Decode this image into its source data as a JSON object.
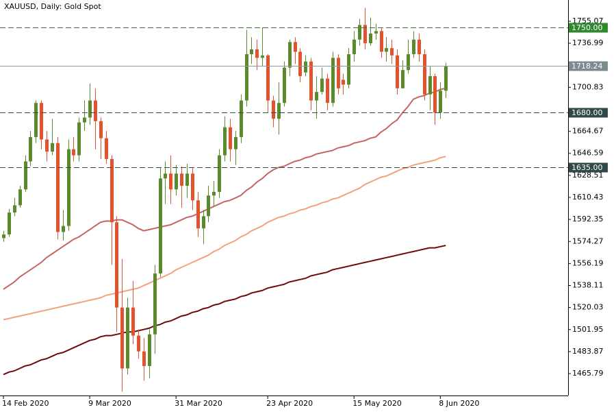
{
  "chart_data": {
    "type": "candlestick",
    "title": "XAUUSD, Daily:  Gold Spot",
    "categories": [
      "14 Feb 2020",
      null,
      null,
      null,
      null,
      null,
      null,
      null,
      null,
      null,
      null,
      null,
      null,
      null,
      null,
      null,
      "9 Mar 2020",
      null,
      null,
      null,
      null,
      null,
      null,
      null,
      null,
      null,
      null,
      null,
      null,
      null,
      null,
      null,
      "31 Mar 2020",
      null,
      null,
      null,
      null,
      null,
      null,
      null,
      null,
      null,
      null,
      null,
      null,
      null,
      null,
      null,
      null,
      "23 Apr 2020",
      null,
      null,
      null,
      null,
      null,
      null,
      null,
      null,
      null,
      null,
      null,
      null,
      null,
      null,
      null,
      "15 May 2020",
      null,
      null,
      null,
      null,
      null,
      null,
      null,
      null,
      null,
      null,
      null,
      null,
      null,
      null,
      null,
      "8 Jun 2020",
      null
    ],
    "open": [
      1577,
      1580,
      1598,
      1604,
      1617,
      1640,
      1660,
      1688,
      1658,
      1648,
      1655,
      1582,
      1587,
      1650,
      1645,
      1672,
      1676,
      1690,
      1673,
      1659,
      1642,
      1590,
      1520,
      1470,
      1520,
      1497,
      1484,
      1472,
      1498,
      1548,
      1626,
      1630,
      1617,
      1630,
      1620,
      1630,
      1608,
      1585,
      1595,
      1612,
      1615,
      1645,
      1668,
      1650,
      1660,
      1690,
      1728,
      1732,
      1725,
      1727,
      1690,
      1675,
      1688,
      1717,
      1738,
      1730,
      1713,
      1722,
      1690,
      1697,
      1708,
      1688,
      1725,
      1707,
      1703,
      1728,
      1740,
      1752,
      1737,
      1745,
      1747,
      1730,
      1733,
      1727,
      1700,
      1715,
      1728,
      1740,
      1728,
      1695,
      1710,
      1680,
      1698
    ],
    "high": [
      1583,
      1601,
      1610,
      1620,
      1645,
      1665,
      1690,
      1690,
      1665,
      1675,
      1660,
      1600,
      1658,
      1660,
      1676,
      1690,
      1704,
      1700,
      1676,
      1665,
      1645,
      1595,
      1560,
      1528,
      1542,
      1502,
      1495,
      1502,
      1555,
      1635,
      1640,
      1645,
      1637,
      1636,
      1638,
      1635,
      1615,
      1600,
      1620,
      1624,
      1650,
      1677,
      1675,
      1665,
      1695,
      1748,
      1742,
      1740,
      1750,
      1728,
      1694,
      1705,
      1722,
      1740,
      1742,
      1733,
      1727,
      1725,
      1710,
      1717,
      1712,
      1730,
      1728,
      1712,
      1733,
      1747,
      1757,
      1766,
      1758,
      1753,
      1750,
      1742,
      1740,
      1732,
      1723,
      1740,
      1747,
      1745,
      1732,
      1718,
      1712,
      1705,
      1721
    ],
    "low": [
      1574,
      1578,
      1595,
      1602,
      1615,
      1636,
      1655,
      1650,
      1640,
      1645,
      1576,
      1575,
      1583,
      1640,
      1640,
      1665,
      1670,
      1650,
      1642,
      1638,
      1555,
      1500,
      1451,
      1465,
      1490,
      1478,
      1460,
      1462,
      1482,
      1545,
      1605,
      1605,
      1612,
      1602,
      1610,
      1600,
      1578,
      1572,
      1590,
      1603,
      1610,
      1640,
      1640,
      1637,
      1655,
      1685,
      1720,
      1715,
      1718,
      1680,
      1668,
      1662,
      1685,
      1710,
      1720,
      1705,
      1710,
      1682,
      1675,
      1695,
      1682,
      1685,
      1695,
      1695,
      1700,
      1722,
      1735,
      1732,
      1735,
      1740,
      1725,
      1722,
      1720,
      1695,
      1700,
      1712,
      1725,
      1722,
      1690,
      1682,
      1670,
      1675,
      1692
    ],
    "close": [
      1580,
      1598,
      1604,
      1617,
      1640,
      1660,
      1688,
      1658,
      1648,
      1655,
      1582,
      1587,
      1650,
      1645,
      1672,
      1676,
      1690,
      1673,
      1659,
      1642,
      1590,
      1520,
      1470,
      1520,
      1497,
      1484,
      1472,
      1498,
      1548,
      1626,
      1630,
      1617,
      1630,
      1620,
      1630,
      1608,
      1585,
      1595,
      1612,
      1615,
      1645,
      1668,
      1650,
      1660,
      1690,
      1728,
      1732,
      1725,
      1727,
      1690,
      1675,
      1688,
      1717,
      1738,
      1730,
      1710,
      1722,
      1690,
      1697,
      1708,
      1688,
      1725,
      1700,
      1703,
      1728,
      1740,
      1752,
      1737,
      1745,
      1747,
      1730,
      1733,
      1727,
      1700,
      1715,
      1728,
      1740,
      1728,
      1695,
      1710,
      1680,
      1698,
      1718.24
    ],
    "up_color": "#5a8a2c",
    "down_color": "#e2522c",
    "series": [
      {
        "color": "#c46464",
        "values": [
          1535,
          1538,
          1541,
          1545,
          1548,
          1551,
          1554,
          1557,
          1561,
          1564,
          1567,
          1570,
          1573,
          1576,
          1578,
          1581,
          1584,
          1587,
          1590,
          1591,
          1591,
          1592,
          1592,
          1590,
          1588,
          1585,
          1583,
          1584,
          1585,
          1586,
          1587,
          1588,
          1590,
          1592,
          1594,
          1595,
          1597,
          1599,
          1601,
          1603,
          1605,
          1607,
          1608,
          1610,
          1612,
          1616,
          1619,
          1623,
          1626,
          1630,
          1633,
          1635,
          1636,
          1638,
          1640,
          1641,
          1643,
          1644,
          1646,
          1647,
          1648,
          1649,
          1651,
          1652,
          1653,
          1655,
          1656,
          1657,
          1659,
          1660,
          1664,
          1667,
          1671,
          1674,
          1680,
          1685,
          1691,
          1693,
          1694,
          1696,
          1697,
          1699,
          1700
        ]
      },
      {
        "color": "#f4a07c",
        "values": [
          1510,
          1511,
          1512,
          1513,
          1514,
          1515,
          1516,
          1517,
          1518,
          1519,
          1520,
          1521,
          1522,
          1523,
          1524,
          1525,
          1526,
          1527,
          1528,
          1530,
          1531,
          1532,
          1533,
          1534,
          1535,
          1536,
          1538,
          1540,
          1542,
          1544,
          1546,
          1548,
          1551,
          1553,
          1555,
          1557,
          1559,
          1561,
          1563,
          1566,
          1568,
          1571,
          1573,
          1575,
          1578,
          1580,
          1583,
          1585,
          1587,
          1590,
          1592,
          1594,
          1595,
          1597,
          1598,
          1600,
          1601,
          1603,
          1604,
          1606,
          1607,
          1609,
          1610,
          1612,
          1614,
          1616,
          1618,
          1621,
          1623,
          1625,
          1627,
          1628,
          1630,
          1632,
          1634,
          1635,
          1637,
          1638,
          1639,
          1640,
          1641,
          1643,
          1644
        ]
      },
      {
        "color": "#6e0a0a",
        "values": [
          1465,
          1467,
          1468,
          1470,
          1472,
          1473,
          1475,
          1477,
          1478,
          1480,
          1482,
          1483,
          1485,
          1487,
          1489,
          1491,
          1493,
          1494,
          1496,
          1497,
          1497,
          1498,
          1499,
          1500,
          1500,
          1501,
          1502,
          1503,
          1505,
          1506,
          1508,
          1509,
          1511,
          1513,
          1514,
          1516,
          1517,
          1519,
          1520,
          1522,
          1523,
          1525,
          1526,
          1527,
          1529,
          1530,
          1532,
          1533,
          1534,
          1536,
          1537,
          1538,
          1539,
          1541,
          1542,
          1543,
          1544,
          1546,
          1547,
          1548,
          1549,
          1551,
          1552,
          1553,
          1554,
          1555,
          1556,
          1557,
          1558,
          1559,
          1560,
          1561,
          1562,
          1563,
          1564,
          1565,
          1566,
          1567,
          1568,
          1569,
          1569,
          1570,
          1571
        ]
      }
    ],
    "levels": [
      {
        "value": 1750,
        "label": "1750.00",
        "color": "#2f8a2f",
        "line_color": "#3a6e3a",
        "style": "dashed"
      },
      {
        "value": 1718.24,
        "color": "#7d8a90",
        "line_color": "#8898a0",
        "style": "solid"
      },
      {
        "value": 1680,
        "label": "1680.00",
        "color": "#2f4a4a",
        "line_color": "#2f4a4a",
        "style": "dashed"
      },
      {
        "value": 1635,
        "label": "1635.00",
        "color": "#2f4a4a",
        "line_color": "#2f4a4a",
        "style": "dashed"
      }
    ],
    "ylim": [
      1447.8,
      1772.5
    ],
    "yticks": [
      1465.79,
      1483.87,
      1501.95,
      1520.03,
      1538.11,
      1556.19,
      1574.27,
      1592.35,
      1610.43,
      1628.51,
      1646.59,
      1664.67,
      1700.83,
      1736.99,
      1755.07
    ]
  }
}
